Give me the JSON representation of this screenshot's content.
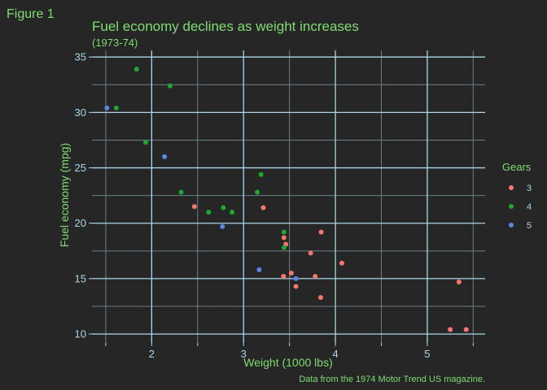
{
  "figure_tag": "Figure 1",
  "colors": {
    "background": "#262626",
    "text_green": "#7fdc72",
    "axis_blue": "#a9d6ea",
    "grid_major": "#a9d6ea",
    "grid_minor": "#6d7f89"
  },
  "chart_data": {
    "type": "scatter",
    "title": "Fuel economy declines as weight increases",
    "subtitle": "(1973-74)",
    "xlabel": "Weight (1000 lbs)",
    "ylabel": "Fuel economy (mpg)",
    "caption": "Data from the 1974 Motor Trend US magazine.",
    "xlim": [
      1.35,
      5.63
    ],
    "ylim": [
      9.2,
      35.6
    ],
    "x_ticks": [
      "2",
      "3",
      "4",
      "5"
    ],
    "x_tick_values": [
      2,
      3,
      4,
      5
    ],
    "x_minor_ticks": [
      1.5,
      2.5,
      3.5,
      4.5,
      5.5
    ],
    "y_ticks": [
      "10",
      "15",
      "20",
      "25",
      "30",
      "35"
    ],
    "y_tick_values": [
      10,
      15,
      20,
      25,
      30,
      35
    ],
    "y_minor_ticks": [
      12.5,
      17.5,
      22.5,
      27.5,
      32.5
    ],
    "grid": true,
    "legend": {
      "title": "Gears",
      "position": "right"
    },
    "series": [
      {
        "name": "3",
        "color": "#f8766d",
        "points": [
          [
            2.465,
            21.5
          ],
          [
            3.215,
            21.4
          ],
          [
            3.44,
            18.7
          ],
          [
            3.46,
            18.1
          ],
          [
            3.57,
            14.3
          ],
          [
            4.07,
            16.4
          ],
          [
            3.73,
            17.3
          ],
          [
            3.78,
            15.2
          ],
          [
            5.25,
            10.4
          ],
          [
            5.424,
            10.4
          ],
          [
            5.345,
            14.7
          ],
          [
            3.52,
            15.5
          ],
          [
            3.435,
            15.2
          ],
          [
            3.84,
            13.3
          ],
          [
            3.845,
            19.2
          ]
        ]
      },
      {
        "name": "4",
        "color": "#1fa82f",
        "points": [
          [
            2.62,
            21.0
          ],
          [
            2.875,
            21.0
          ],
          [
            2.32,
            22.8
          ],
          [
            3.19,
            24.4
          ],
          [
            3.15,
            22.8
          ],
          [
            3.44,
            19.2
          ],
          [
            3.44,
            17.8
          ],
          [
            2.2,
            32.4
          ],
          [
            1.615,
            30.4
          ],
          [
            1.835,
            33.9
          ],
          [
            1.935,
            27.3
          ],
          [
            2.78,
            21.4
          ]
        ]
      },
      {
        "name": "5",
        "color": "#5b86e6",
        "points": [
          [
            2.14,
            26.0
          ],
          [
            1.513,
            30.4
          ],
          [
            3.17,
            15.8
          ],
          [
            2.77,
            19.7
          ],
          [
            3.57,
            15.0
          ]
        ]
      }
    ]
  }
}
